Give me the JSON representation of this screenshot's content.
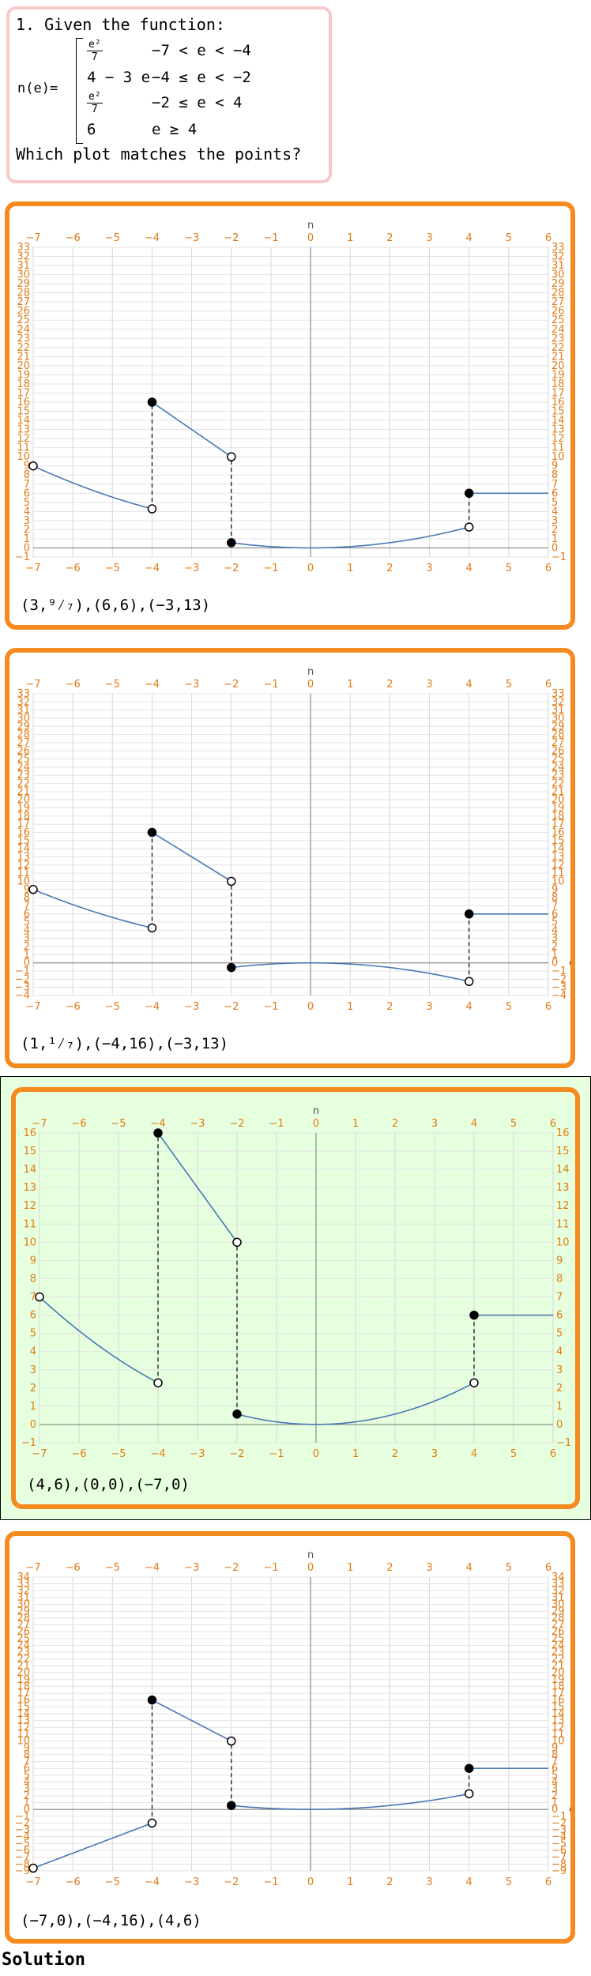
{
  "question": {
    "prompt": "1. Given the function:",
    "func_label": "n(e)=",
    "pieces": [
      {
        "expr_num": "e²",
        "expr_den": "7",
        "cond": "−7 < e < −4"
      },
      {
        "expr": "4 − 3 e",
        "cond": "−4 ≤ e < −2"
      },
      {
        "expr_num": "e²",
        "expr_den": "7",
        "cond": "−2 ≤ e < 4"
      },
      {
        "expr": "6",
        "cond": "e ≥ 4"
      }
    ],
    "ask": "Which plot matches the points?"
  },
  "axis_names": {
    "x": "e",
    "y": "n"
  },
  "colors": {
    "accent": "#f58a1f",
    "curve": "#4a77b4",
    "correct_bg": "#e6ffde",
    "tick": "#e07b13"
  },
  "options": [
    {
      "points_text": "(3,⁹⁄₇),(6,6),(−3,13)",
      "selected": false,
      "chart_data": {
        "type": "line",
        "xlim": [
          -7,
          6
        ],
        "ylim": [
          -1,
          33
        ],
        "segments": [
          {
            "fn": "e2_7_plus",
            "x": [
              -7,
              -4
            ],
            "start": "open",
            "end": "open"
          },
          {
            "fn": "lin",
            "x": [
              -4,
              -2
            ],
            "start": "closed",
            "end": "open"
          },
          {
            "fn": "e2_7",
            "x": [
              -2,
              4
            ],
            "start": "closed",
            "end": "open"
          },
          {
            "fn": "const6",
            "x": [
              4,
              6
            ],
            "start": "closed",
            "end": "none"
          }
        ]
      }
    },
    {
      "points_text": "(1,¹⁄₇),(−4,16),(−3,13)",
      "selected": false,
      "chart_data": {
        "type": "line",
        "xlim": [
          -7,
          6
        ],
        "ylim": [
          -4,
          33
        ],
        "segments": [
          {
            "fn": "e2_7_plus",
            "x": [
              -7,
              -4
            ],
            "start": "open",
            "end": "open"
          },
          {
            "fn": "lin",
            "x": [
              -4,
              -2
            ],
            "start": "closed",
            "end": "open"
          },
          {
            "fn": "neg_e2_7",
            "x": [
              -2,
              4
            ],
            "start": "closed",
            "end": "open"
          },
          {
            "fn": "const6",
            "x": [
              4,
              6
            ],
            "start": "closed",
            "end": "none"
          }
        ]
      }
    },
    {
      "points_text": "(4,6),(0,0),(−7,0)",
      "selected": true,
      "chart_data": {
        "type": "line",
        "xlim": [
          -7,
          6
        ],
        "ylim": [
          -1,
          16
        ],
        "segments": [
          {
            "fn": "e2_7",
            "x": [
              -7,
              -4
            ],
            "start": "open",
            "end": "open"
          },
          {
            "fn": "lin",
            "x": [
              -4,
              -2
            ],
            "start": "closed",
            "end": "open"
          },
          {
            "fn": "e2_7",
            "x": [
              -2,
              4
            ],
            "start": "closed",
            "end": "open"
          },
          {
            "fn": "const6",
            "x": [
              4,
              6
            ],
            "start": "closed",
            "end": "none"
          }
        ]
      }
    },
    {
      "points_text": "(−7,0),(−4,16),(4,6)",
      "selected": false,
      "chart_data": {
        "type": "line",
        "xlim": [
          -7,
          6
        ],
        "ylim": [
          -9,
          34
        ],
        "segments": [
          {
            "fn": "neg_line",
            "x": [
              -7,
              -4
            ],
            "start": "open",
            "end": "open"
          },
          {
            "fn": "lin",
            "x": [
              -4,
              -2
            ],
            "start": "closed",
            "end": "open"
          },
          {
            "fn": "e2_7",
            "x": [
              -2,
              4
            ],
            "start": "closed",
            "end": "open"
          },
          {
            "fn": "const6",
            "x": [
              4,
              6
            ],
            "start": "closed",
            "end": "none"
          }
        ]
      }
    }
  ],
  "solution_label": "Solution"
}
